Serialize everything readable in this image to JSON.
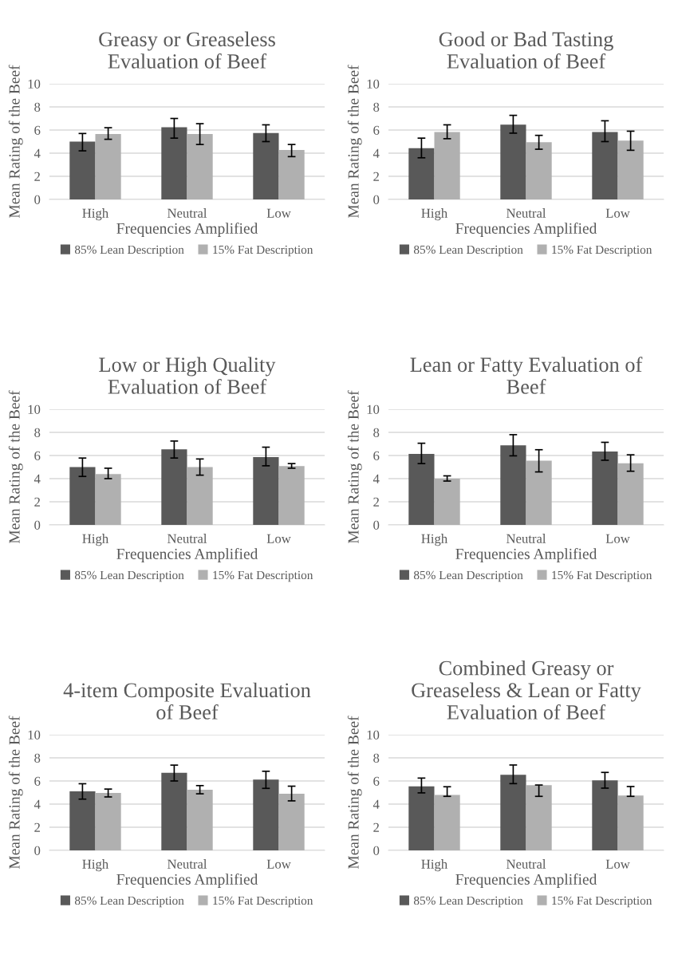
{
  "chart_data": [
    {
      "type": "bar",
      "title": "Greasy or Greaseless\nEvaluation of Beef",
      "xlabel": "Frequencies Amplified",
      "ylabel": "Mean Rating of the Beef",
      "categories": [
        "High",
        "Neutral",
        "Low"
      ],
      "ylim": [
        0,
        10
      ],
      "yticks": [
        0,
        2,
        4,
        6,
        8,
        10
      ],
      "grid": "y",
      "legend": "bottom",
      "series": [
        {
          "name": "85% Lean Description",
          "color": "#595959",
          "values": [
            5.0,
            6.25,
            5.75
          ],
          "errors": [
            [
              4.2,
              5.7
            ],
            [
              5.3,
              7.0
            ],
            [
              5.0,
              6.45
            ]
          ]
        },
        {
          "name": "15% Fat Description",
          "color": "#b0b0b0",
          "values": [
            5.65,
            5.65,
            4.27
          ],
          "errors": [
            [
              5.2,
              6.2
            ],
            [
              4.75,
              6.55
            ],
            [
              3.7,
              4.75
            ]
          ]
        }
      ]
    },
    {
      "type": "bar",
      "title": "Good or Bad Tasting\nEvaluation of Beef",
      "xlabel": "Frequencies Amplified",
      "ylabel": "Mean Rating of the Beef",
      "categories": [
        "High",
        "Neutral",
        "Low"
      ],
      "ylim": [
        0,
        10
      ],
      "yticks": [
        0,
        2,
        4,
        6,
        8,
        10
      ],
      "grid": "y",
      "legend": "bottom",
      "series": [
        {
          "name": "85% Lean Description",
          "color": "#595959",
          "values": [
            4.43,
            6.47,
            5.82
          ],
          "errors": [
            [
              3.6,
              5.3
            ],
            [
              5.73,
              7.27
            ],
            [
              5.0,
              6.8
            ]
          ]
        },
        {
          "name": "15% Fat Description",
          "color": "#b0b0b0",
          "values": [
            5.82,
            4.94,
            5.08
          ],
          "errors": [
            [
              5.25,
              6.45
            ],
            [
              4.34,
              5.54
            ],
            [
              4.25,
              5.9
            ]
          ]
        }
      ]
    },
    {
      "type": "bar",
      "title": "Low or High Quality\nEvaluation of Beef",
      "xlabel": "Frequencies Amplified",
      "ylabel": "Mean Rating of the Beef",
      "categories": [
        "High",
        "Neutral",
        "Low"
      ],
      "ylim": [
        0,
        10
      ],
      "yticks": [
        0,
        2,
        4,
        6,
        8,
        10
      ],
      "grid": "y",
      "legend": "bottom",
      "series": [
        {
          "name": "85% Lean Description",
          "color": "#595959",
          "values": [
            5.0,
            6.53,
            5.87
          ],
          "errors": [
            [
              4.19,
              5.78
            ],
            [
              5.78,
              7.25
            ],
            [
              5.11,
              6.72
            ]
          ]
        },
        {
          "name": "15% Fat Description",
          "color": "#b0b0b0",
          "values": [
            4.39,
            5.0,
            5.08
          ],
          "errors": [
            [
              4.0,
              4.9
            ],
            [
              4.3,
              5.7
            ],
            [
              4.9,
              5.3
            ]
          ]
        }
      ]
    },
    {
      "type": "bar",
      "title": "Lean or Fatty Evaluation of\nBeef",
      "xlabel": "Frequencies Amplified",
      "ylabel": "Mean Rating of the Beef",
      "categories": [
        "High",
        "Neutral",
        "Low"
      ],
      "ylim": [
        0,
        10
      ],
      "yticks": [
        0,
        2,
        4,
        6,
        8,
        10
      ],
      "grid": "y",
      "legend": "bottom",
      "series": [
        {
          "name": "85% Lean Description",
          "color": "#595959",
          "values": [
            6.14,
            6.88,
            6.34
          ],
          "errors": [
            [
              5.3,
              7.06
            ],
            [
              5.97,
              7.8
            ],
            [
              5.59,
              7.14
            ]
          ]
        },
        {
          "name": "15% Fat Description",
          "color": "#b0b0b0",
          "values": [
            4.0,
            5.55,
            5.32
          ],
          "errors": [
            [
              3.79,
              4.24
            ],
            [
              4.58,
              6.5
            ],
            [
              4.64,
              6.06
            ]
          ]
        }
      ]
    },
    {
      "type": "bar",
      "title": "4-item Composite Evaluation\nof Beef",
      "xlabel": "Frequencies Amplified",
      "ylabel": "Mean Rating of the Beef",
      "categories": [
        "High",
        "Neutral",
        "Low"
      ],
      "ylim": [
        0,
        10
      ],
      "yticks": [
        0,
        2,
        4,
        6,
        8,
        10
      ],
      "grid": "y",
      "legend": "bottom",
      "series": [
        {
          "name": "85% Lean Description",
          "color": "#595959",
          "values": [
            5.1,
            6.7,
            6.12
          ],
          "errors": [
            [
              4.43,
              5.76
            ],
            [
              6.0,
              7.37
            ],
            [
              5.36,
              6.84
            ]
          ]
        },
        {
          "name": "15% Fat Description",
          "color": "#b0b0b0",
          "values": [
            4.96,
            5.25,
            4.9
          ],
          "errors": [
            [
              4.62,
              5.3
            ],
            [
              4.89,
              5.6
            ],
            [
              4.28,
              5.55
            ]
          ]
        }
      ]
    },
    {
      "type": "bar",
      "title": "Combined Greasy or\nGreaseless & Lean or Fatty\nEvaluation of Beef",
      "xlabel": "Frequencies Amplified",
      "ylabel": "Mean Rating of the Beef",
      "categories": [
        "High",
        "Neutral",
        "Low"
      ],
      "ylim": [
        0,
        10
      ],
      "yticks": [
        0,
        2,
        4,
        6,
        8,
        10
      ],
      "grid": "y",
      "legend": "bottom",
      "series": [
        {
          "name": "85% Lean Description",
          "color": "#595959",
          "values": [
            5.54,
            6.53,
            6.05
          ],
          "errors": [
            [
              4.97,
              6.25
            ],
            [
              5.77,
              7.38
            ],
            [
              5.38,
              6.74
            ]
          ]
        },
        {
          "name": "15% Fat Description",
          "color": "#b0b0b0",
          "values": [
            4.8,
            5.63,
            4.74
          ],
          "errors": [
            [
              4.67,
              5.5
            ],
            [
              4.67,
              5.65
            ],
            [
              4.67,
              5.52
            ]
          ]
        }
      ]
    }
  ]
}
